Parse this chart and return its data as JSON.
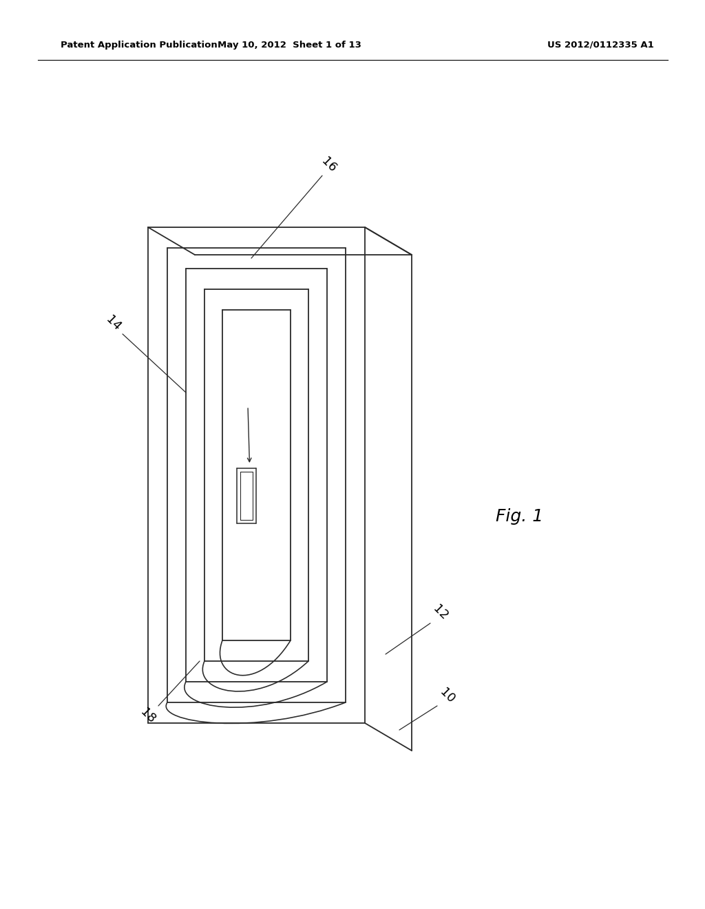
{
  "bg_color": "#ffffff",
  "header_left": "Patent Application Publication",
  "header_mid": "May 10, 2012  Sheet 1 of 13",
  "header_right": "US 2012/0112335 A1",
  "fig_label": "Fig. 1",
  "line_color": "#2a2a2a",
  "line_width": 1.3
}
